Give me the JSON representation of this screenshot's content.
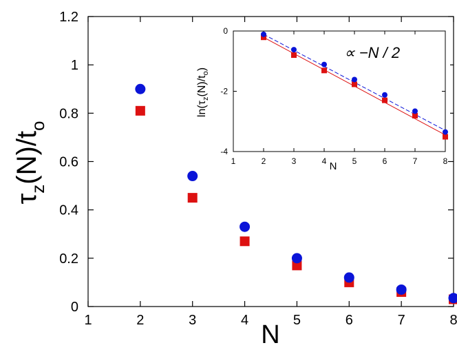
{
  "chart_data": [
    {
      "type": "scatter",
      "title": "",
      "xlabel": "N",
      "ylabel_main": "τ",
      "ylabel_sub": "z",
      "ylabel_mid": "(N)/t",
      "ylabel_sub2": "o",
      "xlim": [
        1,
        8
      ],
      "ylim": [
        0,
        1.2
      ],
      "xticks": [
        "1",
        "2",
        "3",
        "4",
        "5",
        "6",
        "7",
        "8"
      ],
      "yticks": [
        "0",
        "0.2",
        "0.4",
        "0.6",
        "0.8",
        "1",
        "1.2"
      ],
      "xtick_values": [
        1,
        2,
        3,
        4,
        5,
        6,
        7,
        8
      ],
      "ytick_values": [
        0,
        0.2,
        0.4,
        0.6,
        0.8,
        1.0,
        1.2
      ],
      "series": [
        {
          "marker": "circle",
          "color": "#0a14d8",
          "x": [
            2,
            3,
            4,
            5,
            6,
            7,
            8
          ],
          "y": [
            0.9,
            0.54,
            0.33,
            0.2,
            0.12,
            0.07,
            0.035
          ]
        },
        {
          "marker": "square",
          "color": "#dd1111",
          "x": [
            2,
            3,
            4,
            5,
            6,
            7,
            8
          ],
          "y": [
            0.81,
            0.45,
            0.27,
            0.17,
            0.1,
            0.06,
            0.03
          ]
        }
      ]
    },
    {
      "type": "scatter",
      "title": "",
      "xlabel": "N",
      "ylabel_main": "ln(τ",
      "ylabel_sub": "z",
      "ylabel_mid": "(N)/t",
      "ylabel_sub2": "o",
      "ylabel_end": ")",
      "annotation": "∝ −N / 2",
      "xlim": [
        1,
        8
      ],
      "ylim": [
        -4,
        0
      ],
      "xticks": [
        "1",
        "2",
        "3",
        "4",
        "5",
        "6",
        "7",
        "8"
      ],
      "yticks": [
        "0",
        "-2",
        "-4"
      ],
      "xtick_values": [
        1,
        2,
        3,
        4,
        5,
        6,
        7,
        8
      ],
      "ytick_values": [
        0,
        -2,
        -4
      ],
      "series": [
        {
          "marker": "circle",
          "color": "#0a14d8",
          "line_style": "dashed",
          "x": [
            2,
            3,
            4,
            5,
            6,
            7,
            8
          ],
          "y": [
            -0.11,
            -0.62,
            -1.11,
            -1.61,
            -2.12,
            -2.66,
            -3.35
          ]
        },
        {
          "marker": "square",
          "color": "#dd1111",
          "line_style": "solid",
          "x": [
            2,
            3,
            4,
            5,
            6,
            7,
            8
          ],
          "y": [
            -0.21,
            -0.8,
            -1.31,
            -1.77,
            -2.3,
            -2.81,
            -3.51
          ]
        }
      ],
      "fit_lines": [
        {
          "color": "#0a14d8",
          "style": "dashed",
          "x": [
            2,
            8
          ],
          "y": [
            -0.11,
            -3.3
          ]
        },
        {
          "color": "#dd1111",
          "style": "solid",
          "x": [
            2,
            8
          ],
          "y": [
            -0.21,
            -3.45
          ]
        }
      ]
    }
  ]
}
